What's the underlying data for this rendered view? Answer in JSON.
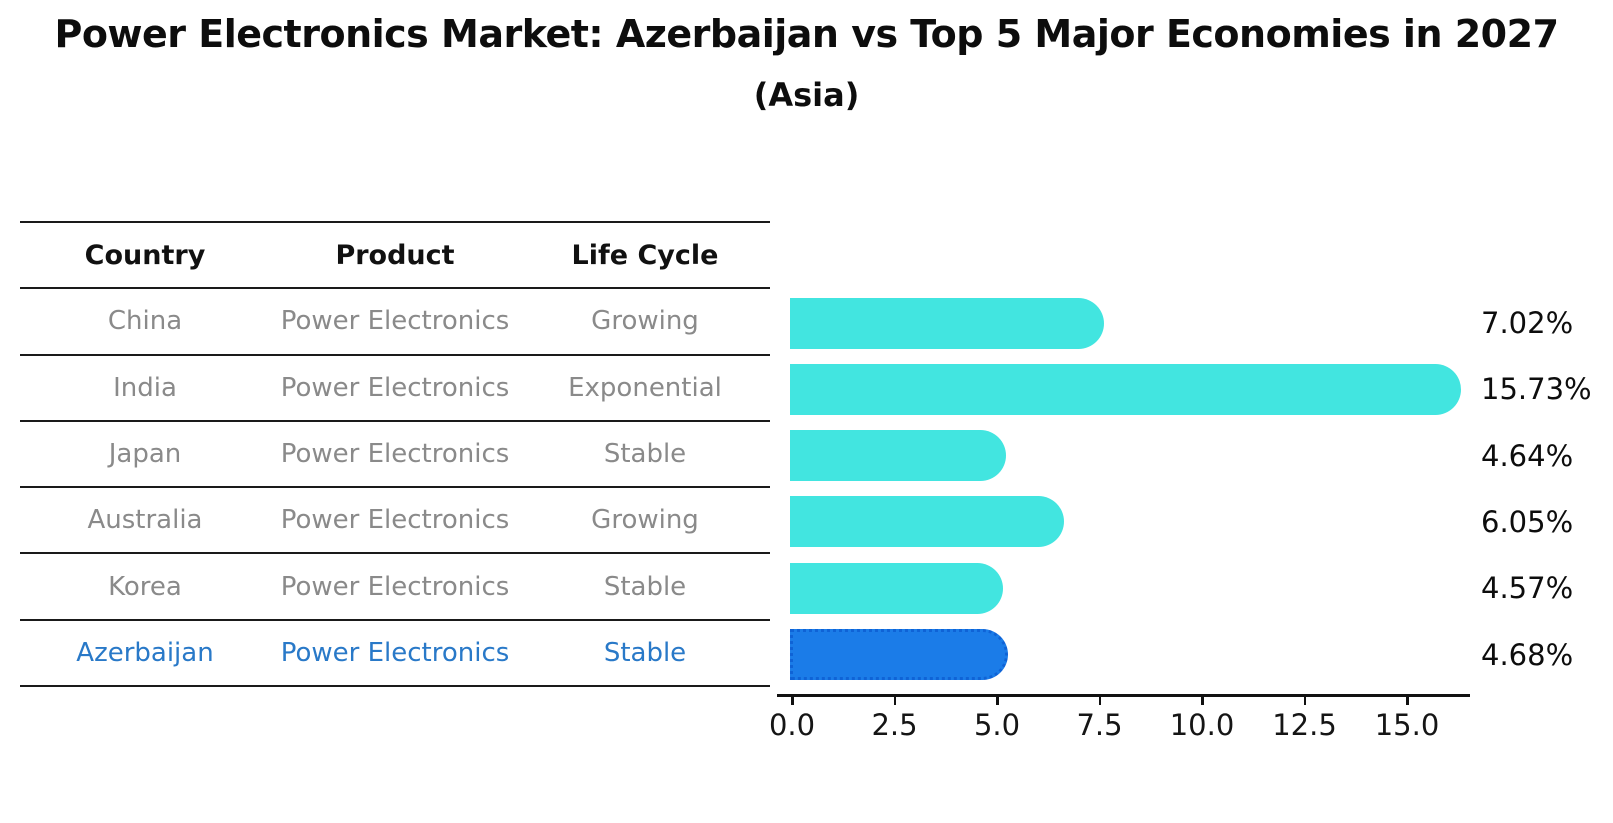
{
  "title": "Power Electronics Market: Azerbaijan vs Top 5 Major Economies in 2027",
  "subtitle": "(Asia)",
  "table": {
    "headers": [
      "Country",
      "Product",
      "Life Cycle"
    ],
    "rows": [
      {
        "country": "China",
        "product": "Power Electronics",
        "life_cycle": "Growing"
      },
      {
        "country": "India",
        "product": "Power Electronics",
        "life_cycle": "Exponential"
      },
      {
        "country": "Japan",
        "product": "Power Electronics",
        "life_cycle": "Stable"
      },
      {
        "country": "Australia",
        "product": "Power Electronics",
        "life_cycle": "Growing"
      },
      {
        "country": "Korea",
        "product": "Power Electronics",
        "life_cycle": "Stable"
      },
      {
        "country": "Azerbaijan",
        "product": "Power Electronics",
        "life_cycle": "Stable"
      }
    ],
    "highlighted_row": "Azerbaijan"
  },
  "chart_data": {
    "type": "bar",
    "orientation": "horizontal",
    "title": "Power Electronics Market: Azerbaijan vs Top 5 Major Economies in 2027",
    "subtitle": "(Asia)",
    "categories": [
      "China",
      "India",
      "Japan",
      "Australia",
      "Korea",
      "Azerbaijan"
    ],
    "values": [
      7.02,
      15.73,
      4.64,
      6.05,
      4.57,
      4.68
    ],
    "value_labels": [
      "7.02%",
      "15.73%",
      "4.64%",
      "6.05%",
      "4.57%",
      "4.68%"
    ],
    "xticks": [
      "0.0",
      "2.5",
      "5.0",
      "7.5",
      "10.0",
      "12.5",
      "15.0"
    ],
    "xtick_values": [
      0,
      2.5,
      5,
      7.5,
      10,
      12.5,
      15
    ],
    "xlim": [
      0,
      16.5
    ],
    "grid": false,
    "legend": false,
    "bar_color": "#42e5e0",
    "highlight_color": "#1b7ce8",
    "highlight_border_color": "#0f63d6",
    "highlight_index": 5,
    "highlight_text_color": "#2979c8"
  }
}
